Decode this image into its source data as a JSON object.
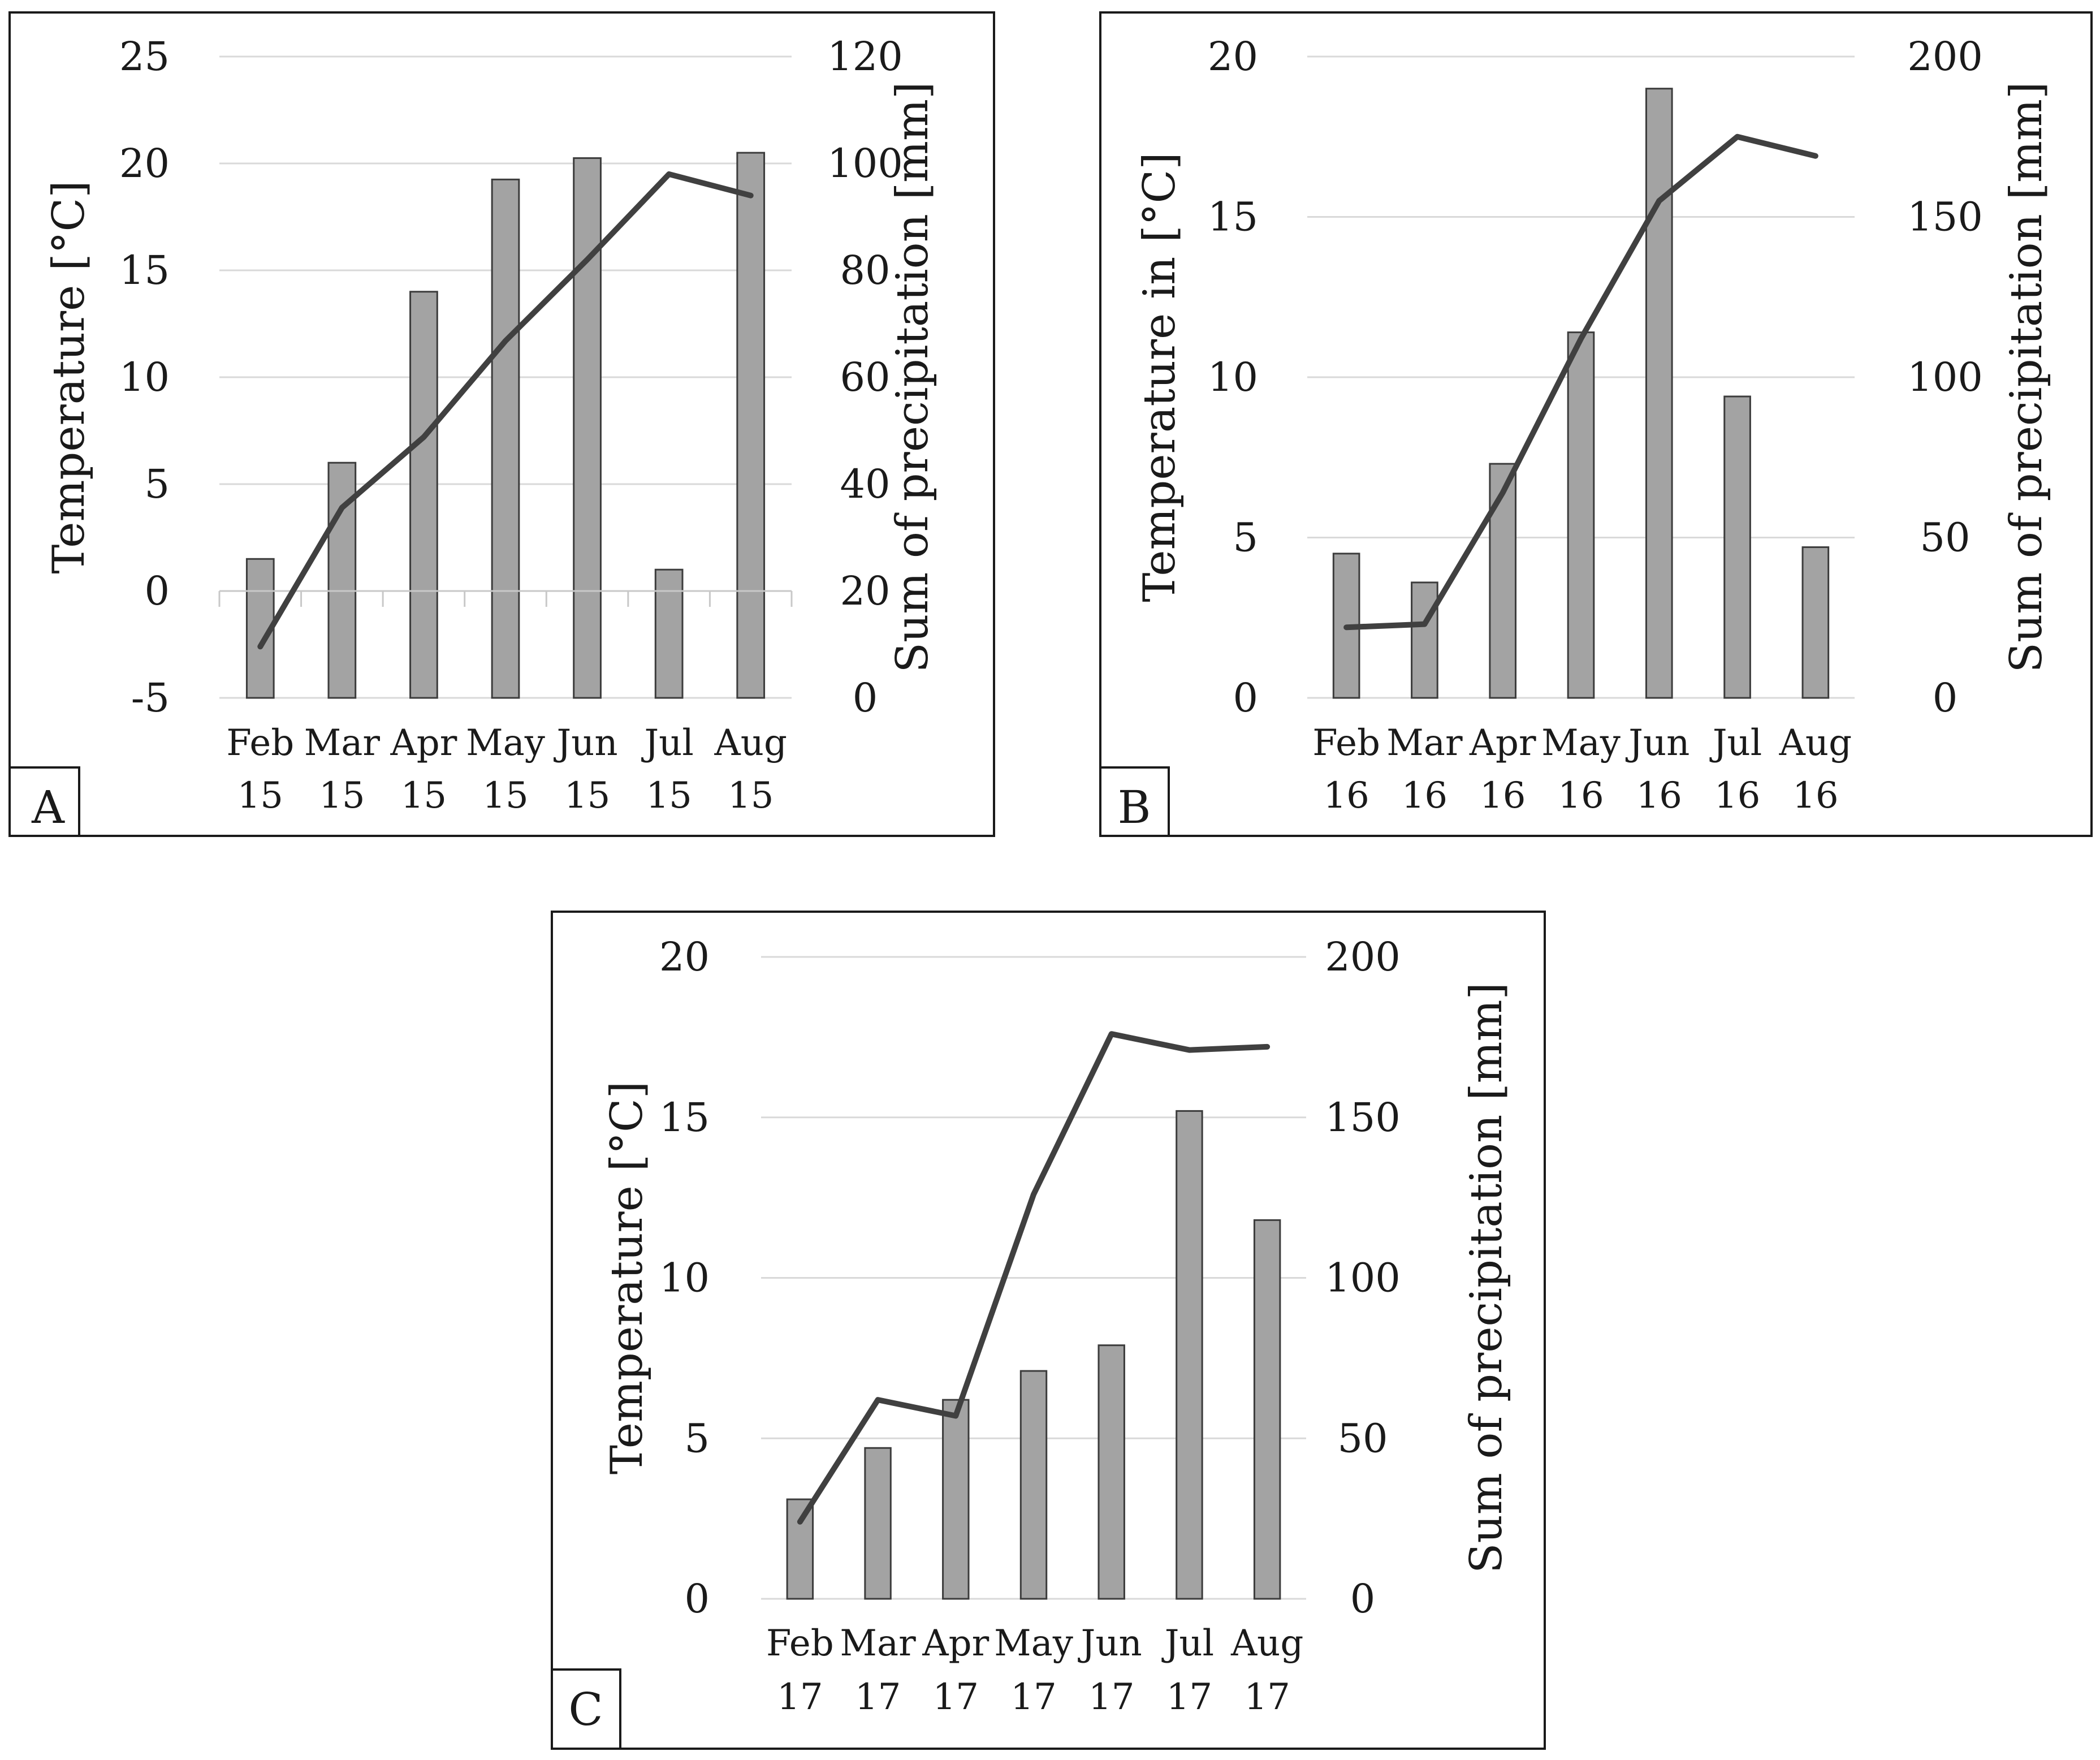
{
  "colors": {
    "bar_fill": "#a3a3a3",
    "bar_stroke": "#3c3c3c",
    "line": "#404040",
    "grid": "#d9d9d9",
    "frame": "#1a1a1a"
  },
  "chart_data": [
    {
      "panel": "A",
      "type": "bar+line",
      "categories": [
        [
          "Feb",
          "15"
        ],
        [
          "Mar",
          "15"
        ],
        [
          "Apr",
          "15"
        ],
        [
          "May",
          "15"
        ],
        [
          "Jun",
          "15"
        ],
        [
          "Jul",
          "15"
        ],
        [
          "Aug",
          "15"
        ]
      ],
      "series": [
        {
          "name": "Sum of precipitation",
          "type": "bar",
          "axis": "right",
          "values": [
            26,
            44,
            76,
            97,
            101,
            24,
            102
          ]
        },
        {
          "name": "Temperature",
          "type": "line",
          "axis": "left",
          "values": [
            -2.6,
            3.9,
            7.2,
            11.7,
            15.5,
            19.5,
            18.5
          ]
        }
      ],
      "ylabel_left": "Temperature [°C]",
      "ylabel_right": "Sum of precipitation [mm]",
      "ylim_left": [
        -5,
        25
      ],
      "ylim_right": [
        0,
        120
      ],
      "ticks_left": [
        25,
        20,
        15,
        10,
        5,
        0,
        -5
      ],
      "ticks_left_labels": [
        "25",
        "20",
        "15",
        "10",
        "5",
        "0",
        "-5"
      ],
      "ticks_right": [
        120,
        100,
        80,
        60,
        40,
        20,
        0
      ],
      "ticks_right_labels": [
        "120",
        "100",
        "80",
        "60",
        "40",
        "20",
        "0"
      ],
      "grid": true
    },
    {
      "panel": "B",
      "type": "bar+line",
      "categories": [
        [
          "Feb",
          "16"
        ],
        [
          "Mar",
          "16"
        ],
        [
          "Apr",
          "16"
        ],
        [
          "May",
          "16"
        ],
        [
          "Jun",
          "16"
        ],
        [
          "Jul",
          "16"
        ],
        [
          "Aug",
          "16"
        ]
      ],
      "series": [
        {
          "name": "Sum of precipitation",
          "type": "bar",
          "axis": "right",
          "values": [
            45,
            36,
            73,
            114,
            190,
            94,
            47
          ]
        },
        {
          "name": "Temperature",
          "type": "line",
          "axis": "left",
          "values": [
            2.2,
            2.3,
            6.4,
            11.2,
            15.5,
            17.5,
            16.9
          ]
        }
      ],
      "ylabel_left": "Temperature in [°C]",
      "ylabel_right": "Sum of precipitation [mm]",
      "ylim_left": [
        0,
        20
      ],
      "ylim_right": [
        0,
        200
      ],
      "ticks_left": [
        20,
        15,
        10,
        5,
        0
      ],
      "ticks_left_labels": [
        "20",
        "15",
        "10",
        "5",
        "0"
      ],
      "ticks_right": [
        200,
        150,
        100,
        50,
        0
      ],
      "ticks_right_labels": [
        "200",
        "150",
        "100",
        "50",
        "0"
      ],
      "grid": true
    },
    {
      "panel": "C",
      "type": "bar+line",
      "categories": [
        [
          "Feb",
          "17"
        ],
        [
          "Mar",
          "17"
        ],
        [
          "Apr",
          "17"
        ],
        [
          "May",
          "17"
        ],
        [
          "Jun",
          "17"
        ],
        [
          "Jul",
          "17"
        ],
        [
          "Aug",
          "17"
        ]
      ],
      "series": [
        {
          "name": "Sum of precipitation",
          "type": "bar",
          "axis": "right",
          "values": [
            31,
            47,
            62,
            71,
            79,
            152,
            118
          ]
        },
        {
          "name": "Temperature",
          "type": "line",
          "axis": "left",
          "values": [
            2.4,
            6.2,
            5.7,
            12.6,
            17.6,
            17.1,
            17.2
          ]
        }
      ],
      "ylabel_left": "Temperature [°C]",
      "ylabel_right": "Sum of precipitation [mm]",
      "ylim_left": [
        0,
        20
      ],
      "ylim_right": [
        0,
        200
      ],
      "ticks_left": [
        20,
        15,
        10,
        5,
        0
      ],
      "ticks_left_labels": [
        "20",
        "15",
        "10",
        "5",
        "0"
      ],
      "ticks_right": [
        200,
        150,
        100,
        50,
        0
      ],
      "ticks_right_labels": [
        "200",
        "150",
        "100",
        "50",
        "0"
      ],
      "grid": true
    }
  ]
}
